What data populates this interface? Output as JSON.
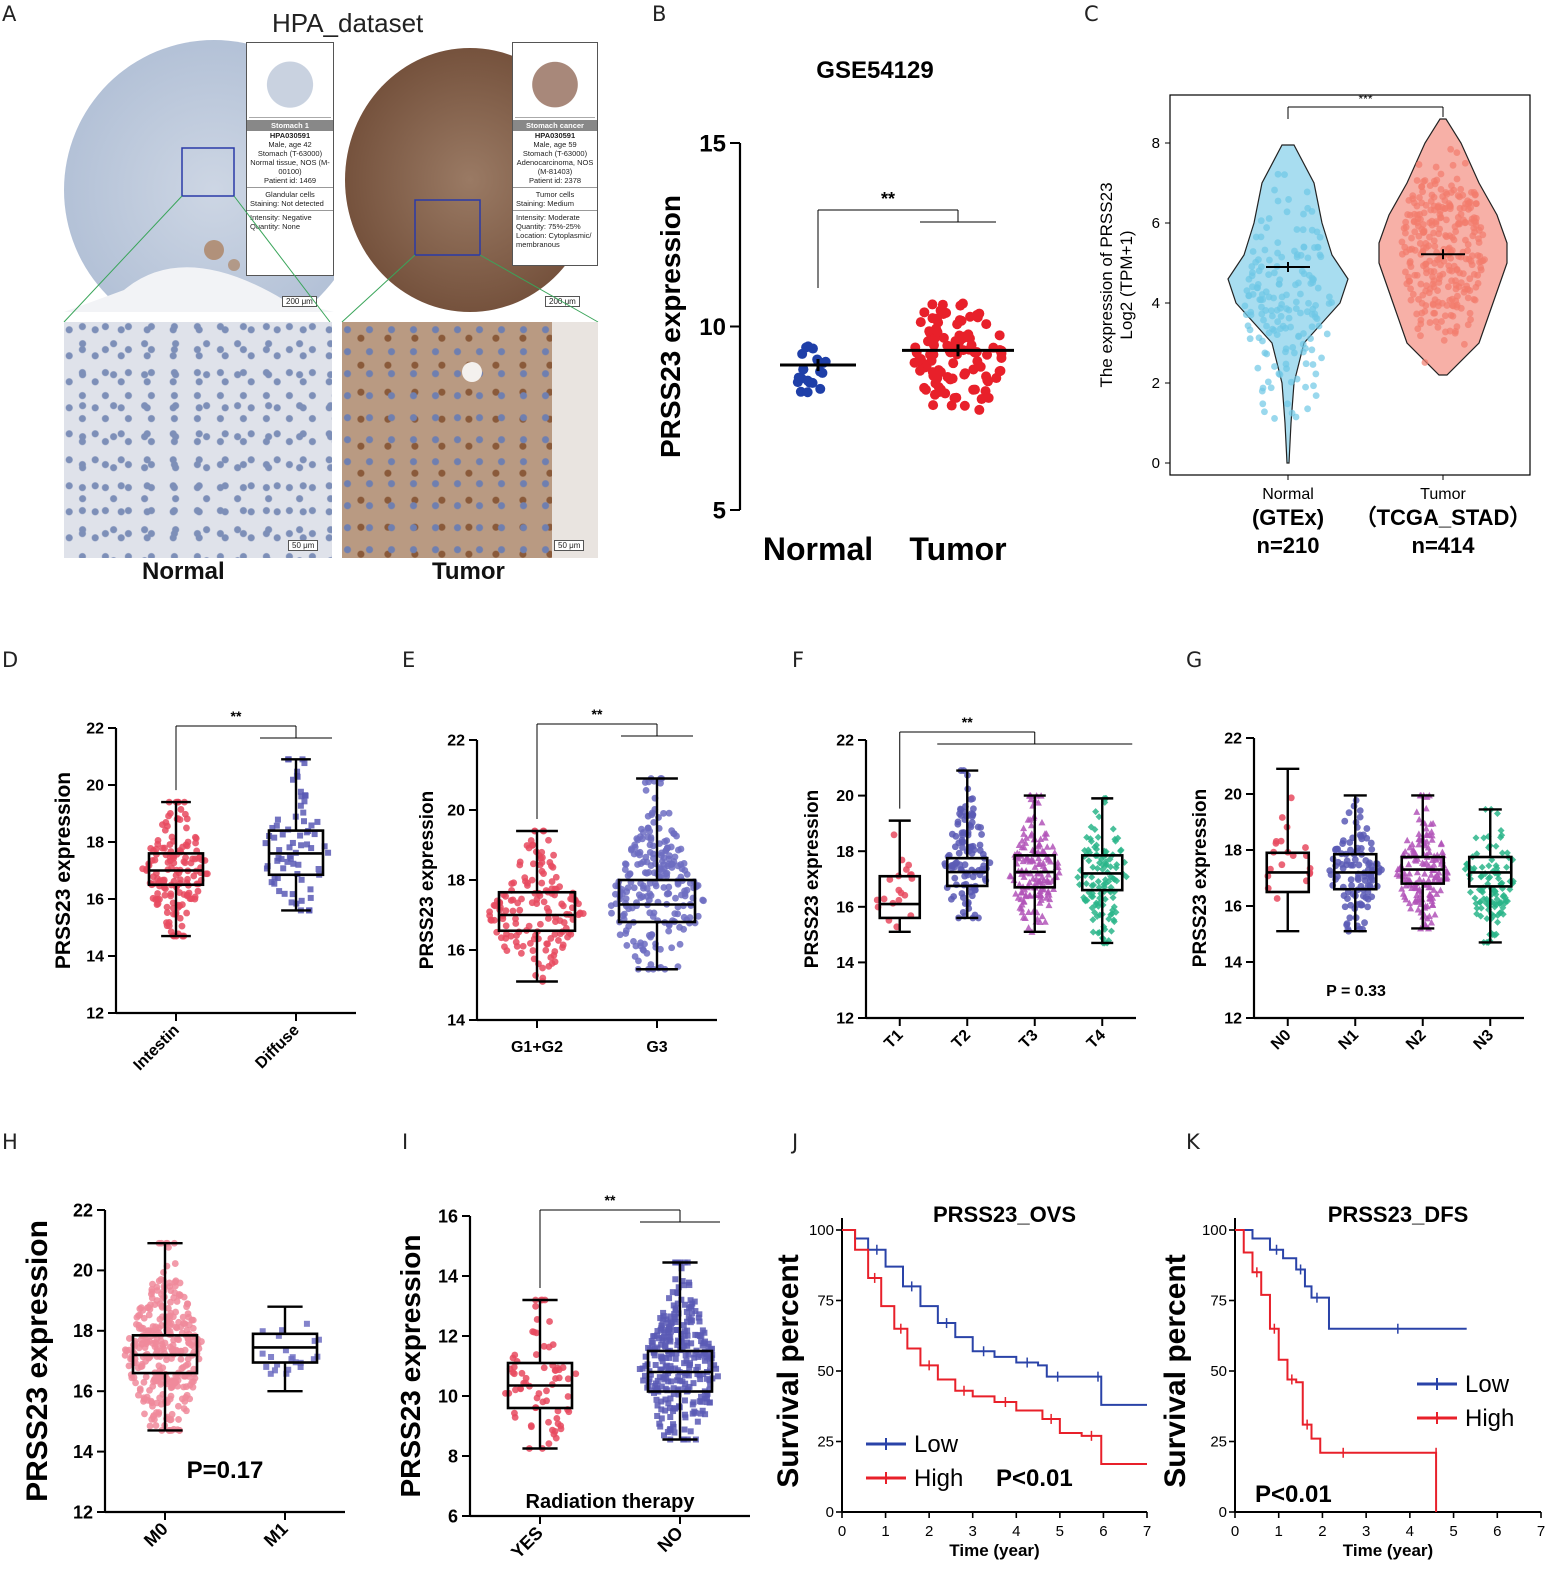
{
  "figure": {
    "panel_letters": [
      "A",
      "B",
      "C",
      "D",
      "E",
      "F",
      "G",
      "H",
      "I",
      "J",
      "K"
    ],
    "A": {
      "title": "HPA_dataset",
      "normal_label": "Normal",
      "tumor_label": "Tumor",
      "normal_card": {
        "header": "Stomach 1",
        "id": "HPA030591",
        "lines": [
          "Male, age 42",
          "Stomach (T-63000)",
          "Normal tissue, NOS (M-00100)",
          "Patient id: 1469"
        ],
        "cell_type": "Glandular cells",
        "staining": "Staining: Not detected",
        "intensity": "Intensity: Negative",
        "quantity": "Quantity: None"
      },
      "tumor_card": {
        "header": "Stomach cancer",
        "id": "HPA030591",
        "lines": [
          "Male, age 59",
          "Stomach (T-63000)",
          "Adenocarcinoma, NOS (M-81403)",
          "Patient id: 2378"
        ],
        "cell_type": "Tumor cells",
        "staining": "Staining: Medium",
        "intensity": "Intensity: Moderate",
        "quantity": "Quantity: 75%-25%",
        "location": "Location: Cytoplasmic/ membranous"
      },
      "scale_200": "200 μm",
      "scale_50": "50 μm"
    }
  },
  "chart_data": [
    {
      "panel": "B",
      "type": "scatter",
      "title": "GSE54129",
      "ylabel": "PRSS23 expression",
      "categories": [
        "Normal",
        "Tumor"
      ],
      "ylim": [
        5,
        15
      ],
      "yticks": [
        5,
        10,
        15
      ],
      "means": [
        8.95,
        9.35
      ],
      "spread": [
        [
          7.8,
          9.7
        ],
        [
          7.6,
          11.0
        ]
      ],
      "n": [
        21,
        111
      ],
      "significance": "**",
      "colors": [
        "#1f3fa8",
        "#e8202a"
      ]
    },
    {
      "panel": "C",
      "type": "violin",
      "ylabel": "The expression of PRSS23",
      "ylabel2": "Log2 (TPM+1)",
      "categories": [
        "Normal",
        "Tumor"
      ],
      "sublabels": [
        "(GTEx)",
        "（TCGA_STAD）"
      ],
      "counts": [
        "n=210",
        "n=414"
      ],
      "ylim": [
        -0.3,
        9.2
      ],
      "yticks": [
        0,
        2,
        4,
        6,
        8
      ],
      "means": [
        4.9,
        5.22
      ],
      "ranges": [
        [
          0,
          7.95
        ],
        [
          2.2,
          8.6
        ]
      ],
      "significance": "***",
      "colors": [
        "#6ec7e6",
        "#f27c6c"
      ]
    },
    {
      "panel": "D",
      "type": "boxplot",
      "ylabel": "PRSS23 expression",
      "categories": [
        "Intestin",
        "Diffuse"
      ],
      "ylim": [
        12,
        22
      ],
      "yticks": [
        12,
        14,
        16,
        18,
        20,
        22
      ],
      "boxes": [
        {
          "min": 14.7,
          "q1": 16.5,
          "median": 17.0,
          "q3": 17.6,
          "max": 19.4
        },
        {
          "min": 15.6,
          "q1": 16.85,
          "median": 17.6,
          "q3": 18.4,
          "max": 20.9
        }
      ],
      "significance": "**",
      "colors": [
        "#e84a5f",
        "#5b5bb5"
      ]
    },
    {
      "panel": "E",
      "type": "boxplot",
      "ylabel": "PRSS23 expression",
      "categories": [
        "G1+G2",
        "G3"
      ],
      "ylim": [
        14,
        22
      ],
      "yticks": [
        14,
        16,
        18,
        20,
        22
      ],
      "boxes": [
        {
          "min": 15.1,
          "q1": 16.55,
          "median": 17.0,
          "q3": 17.65,
          "max": 19.4
        },
        {
          "min": 15.45,
          "q1": 16.8,
          "median": 17.3,
          "q3": 18.0,
          "max": 20.9
        }
      ],
      "significance": "**",
      "colors": [
        "#e84a5f",
        "#6d6dc2"
      ]
    },
    {
      "panel": "F",
      "type": "boxplot",
      "ylabel": "PRSS23 expression",
      "categories": [
        "T1",
        "T2",
        "T3",
        "T4"
      ],
      "ylim": [
        12,
        22
      ],
      "yticks": [
        12,
        14,
        16,
        18,
        20,
        22
      ],
      "boxes": [
        {
          "min": 15.1,
          "q1": 15.6,
          "median": 16.1,
          "q3": 17.1,
          "max": 19.1
        },
        {
          "min": 15.6,
          "q1": 16.75,
          "median": 17.25,
          "q3": 17.75,
          "max": 20.9
        },
        {
          "min": 15.1,
          "q1": 16.7,
          "median": 17.25,
          "q3": 17.85,
          "max": 20.0
        },
        {
          "min": 14.7,
          "q1": 16.6,
          "median": 17.2,
          "q3": 17.85,
          "max": 19.9
        }
      ],
      "significance": "**",
      "colors": [
        "#e84a5f",
        "#5b5bb5",
        "#b153b8",
        "#2ab58a"
      ]
    },
    {
      "panel": "G",
      "type": "boxplot",
      "ylabel": "PRSS23 expression",
      "categories": [
        "N0",
        "N1",
        "N2",
        "N3"
      ],
      "ylim": [
        12,
        22
      ],
      "yticks": [
        12,
        14,
        16,
        18,
        20,
        22
      ],
      "boxes": [
        {
          "min": 15.1,
          "q1": 16.5,
          "median": 17.2,
          "q3": 17.9,
          "max": 20.9
        },
        {
          "min": 15.1,
          "q1": 16.6,
          "median": 17.2,
          "q3": 17.85,
          "max": 19.95
        },
        {
          "min": 15.2,
          "q1": 16.8,
          "median": 17.3,
          "q3": 17.75,
          "max": 19.95
        },
        {
          "min": 14.7,
          "q1": 16.7,
          "median": 17.2,
          "q3": 17.75,
          "max": 19.45
        }
      ],
      "annotation": "P = 0.33",
      "colors": [
        "#e84a5f",
        "#5b5bb5",
        "#b153b8",
        "#2ab58a"
      ]
    },
    {
      "panel": "H",
      "type": "boxplot",
      "ylabel": "PRSS23 expression",
      "categories": [
        "M0",
        "M1"
      ],
      "ylim": [
        12,
        22
      ],
      "yticks": [
        12,
        14,
        16,
        18,
        20,
        22
      ],
      "boxes": [
        {
          "min": 14.7,
          "q1": 16.6,
          "median": 17.2,
          "q3": 17.85,
          "max": 20.9
        },
        {
          "min": 16.0,
          "q1": 16.95,
          "median": 17.45,
          "q3": 17.9,
          "max": 18.8
        }
      ],
      "annotation": "P=0.17",
      "colors": [
        "#f08a9b",
        "#6d6dc2"
      ]
    },
    {
      "panel": "I",
      "type": "boxplot",
      "ylabel": "PRSS23 expression",
      "xlabel": "Radiation therapy",
      "categories": [
        "YES",
        "NO"
      ],
      "ylim": [
        6,
        16
      ],
      "yticks": [
        6,
        8,
        10,
        12,
        14,
        16
      ],
      "boxes": [
        {
          "min": 8.25,
          "q1": 9.6,
          "median": 10.35,
          "q3": 11.1,
          "max": 13.2
        },
        {
          "min": 8.55,
          "q1": 10.15,
          "median": 10.8,
          "q3": 11.5,
          "max": 14.45
        }
      ],
      "significance": "**",
      "colors": [
        "#e84a5f",
        "#5b5bb5"
      ]
    },
    {
      "panel": "J",
      "type": "line",
      "title": "PRSS23_OVS",
      "xlabel": "Time (year)",
      "ylabel": "Survival percent",
      "xlim": [
        0,
        7
      ],
      "ylim": [
        0,
        100
      ],
      "xticks": [
        0,
        1,
        2,
        3,
        4,
        5,
        6,
        7
      ],
      "yticks": [
        0,
        25,
        50,
        75,
        100
      ],
      "series": [
        {
          "name": "Low",
          "color": "#2a43a8",
          "x": [
            0,
            0.3,
            0.6,
            1.0,
            1.4,
            1.8,
            2.2,
            2.6,
            3.0,
            3.5,
            4.0,
            4.5,
            4.7,
            5.2,
            5.8,
            5.95,
            7.0
          ],
          "y": [
            100,
            97,
            93,
            87,
            80,
            73,
            67,
            62,
            57,
            55,
            53,
            52,
            48,
            48,
            48,
            38,
            38
          ]
        },
        {
          "name": "High",
          "color": "#e8202a",
          "x": [
            0,
            0.3,
            0.6,
            0.9,
            1.2,
            1.5,
            1.8,
            2.2,
            2.6,
            3.0,
            3.5,
            4.0,
            4.6,
            5.0,
            5.5,
            5.95,
            7.0
          ],
          "y": [
            100,
            93,
            83,
            73,
            65,
            58,
            52,
            47,
            43,
            41,
            39,
            36,
            33,
            28,
            27,
            17,
            17
          ]
        }
      ],
      "annotation": "P<0.01"
    },
    {
      "panel": "K",
      "type": "line",
      "title": "PRSS23_DFS",
      "xlabel": "Time (year)",
      "ylabel": "Survival percent",
      "xlim": [
        0,
        7
      ],
      "ylim": [
        0,
        100
      ],
      "xticks": [
        0,
        1,
        2,
        3,
        4,
        5,
        6,
        7
      ],
      "yticks": [
        0,
        25,
        50,
        75,
        100
      ],
      "series": [
        {
          "name": "Low",
          "color": "#2a43a8",
          "x": [
            0,
            0.4,
            0.8,
            1.1,
            1.4,
            1.6,
            1.75,
            2.0,
            2.15,
            5.3
          ],
          "y": [
            100,
            97,
            93,
            90,
            86,
            80,
            76,
            76,
            65,
            65
          ]
        },
        {
          "name": "High",
          "color": "#e8202a",
          "x": [
            0,
            0.2,
            0.4,
            0.6,
            0.8,
            1.0,
            1.2,
            1.4,
            1.55,
            1.75,
            1.95,
            3.0,
            4.6,
            4.6
          ],
          "y": [
            100,
            92,
            85,
            77,
            65,
            54,
            47,
            46,
            31,
            26,
            21,
            21,
            21,
            0
          ]
        }
      ],
      "annotation": "P<0.01"
    }
  ]
}
